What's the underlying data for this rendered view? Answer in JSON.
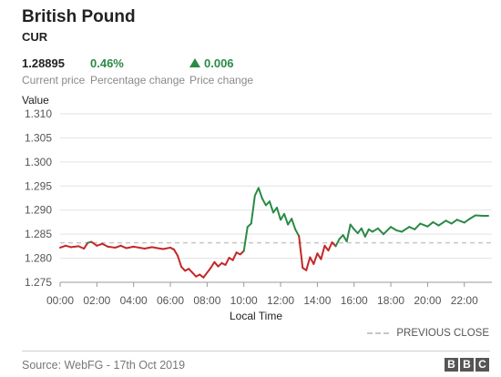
{
  "header": {
    "title": "British Pound",
    "subtitle": "CUR"
  },
  "stats": {
    "current_price": {
      "value": "1.28895",
      "label": "Current price"
    },
    "percentage_change": {
      "value": "0.46%",
      "label": "Percentage change"
    },
    "price_change": {
      "value": "0.006",
      "label": "Price change",
      "direction": "up"
    }
  },
  "colors": {
    "up": "#2a8a45",
    "down": "#c42727",
    "previous_close_line": "#c6c6c6",
    "grid": "#e3e3e3"
  },
  "legend": {
    "previous_close": "PREVIOUS CLOSE"
  },
  "footer": {
    "source": "Source: WebFG - 17th Oct 2019",
    "logo_letters": [
      "B",
      "B",
      "C"
    ]
  },
  "chart_data": {
    "type": "line",
    "ylabel": "Value",
    "xlabel": "Local Time",
    "ylim": [
      1.275,
      1.31
    ],
    "xlim": [
      0,
      23.5
    ],
    "yticks": [
      "1.310",
      "1.305",
      "1.300",
      "1.295",
      "1.290",
      "1.285",
      "1.280",
      "1.275"
    ],
    "xticks": [
      "00:00",
      "02:00",
      "04:00",
      "06:00",
      "08:00",
      "10:00",
      "12:00",
      "14:00",
      "16:00",
      "18:00",
      "20:00",
      "22:00"
    ],
    "grid": true,
    "previous_close": 1.2832,
    "series": [
      {
        "x": [
          0,
          0.3,
          0.6,
          1.0,
          1.3,
          1.5,
          1.7,
          2.0,
          2.3,
          2.6,
          3.0,
          3.3,
          3.6,
          4.0,
          4.3,
          4.6,
          5.0,
          5.3,
          5.6,
          6.0,
          6.2,
          6.4,
          6.6,
          6.8,
          7.0,
          7.2,
          7.4,
          7.6,
          7.8,
          8.0,
          8.2,
          8.4,
          8.6,
          8.8,
          9.0,
          9.2,
          9.4,
          9.6,
          9.8,
          10.0,
          10.2,
          10.4,
          10.6,
          10.8,
          11.0,
          11.2,
          11.4,
          11.6,
          11.8,
          12.0,
          12.2,
          12.4,
          12.6,
          12.8,
          13.0,
          13.2,
          13.4,
          13.6,
          13.8,
          14.0,
          14.2,
          14.4,
          14.6,
          14.8,
          15.0,
          15.2,
          15.4,
          15.6,
          15.8,
          16.0,
          16.2,
          16.4,
          16.6,
          16.8,
          17.0,
          17.3,
          17.6,
          18.0,
          18.3,
          18.6,
          19.0,
          19.3,
          19.6,
          20.0,
          20.3,
          20.6,
          21.0,
          21.3,
          21.6,
          22.0,
          22.3,
          22.6,
          23.0,
          23.3
        ],
        "y": [
          1.2822,
          1.2826,
          1.2823,
          1.2825,
          1.282,
          1.2832,
          1.2834,
          1.2826,
          1.283,
          1.2824,
          1.2822,
          1.2826,
          1.2821,
          1.2824,
          1.2822,
          1.282,
          1.2823,
          1.2821,
          1.2819,
          1.2822,
          1.2818,
          1.2805,
          1.2782,
          1.2774,
          1.2778,
          1.277,
          1.2762,
          1.2766,
          1.276,
          1.277,
          1.278,
          1.2792,
          1.2783,
          1.279,
          1.2786,
          1.2801,
          1.2796,
          1.2812,
          1.2808,
          1.2815,
          1.2865,
          1.2872,
          1.293,
          1.2946,
          1.2924,
          1.291,
          1.2918,
          1.2895,
          1.2905,
          1.288,
          1.2892,
          1.287,
          1.2882,
          1.286,
          1.2846,
          1.278,
          1.2775,
          1.2802,
          1.2788,
          1.281,
          1.2798,
          1.2826,
          1.2816,
          1.2833,
          1.2825,
          1.284,
          1.2848,
          1.2835,
          1.287,
          1.286,
          1.2852,
          1.2862,
          1.2845,
          1.286,
          1.2855,
          1.2862,
          1.285,
          1.2865,
          1.2858,
          1.2855,
          1.2865,
          1.286,
          1.2872,
          1.2866,
          1.2875,
          1.2868,
          1.2878,
          1.2872,
          1.288,
          1.2874,
          1.2882,
          1.2889,
          1.2888,
          1.2888
        ]
      }
    ]
  }
}
